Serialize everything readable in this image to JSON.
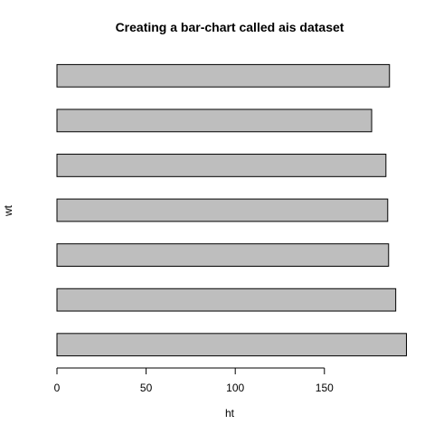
{
  "chart_data": {
    "type": "bar",
    "orientation": "horizontal",
    "title": "Creating a bar-chart called ais dataset",
    "xlabel": "ht",
    "ylabel": "wt",
    "values": [
      196.0,
      190.0,
      186.0,
      185.5,
      184.5,
      176.5,
      186.5
    ],
    "xlim": [
      0,
      196
    ],
    "x_ticks": [
      0,
      50,
      100,
      150
    ],
    "bar_color": "#bebebe",
    "border_color": "#000000",
    "grid": false
  }
}
